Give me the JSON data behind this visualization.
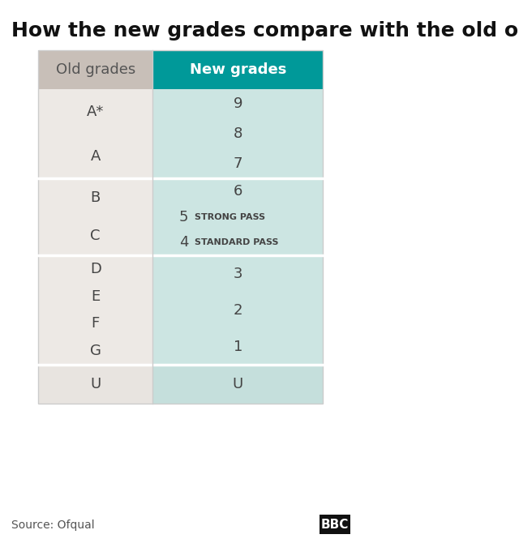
{
  "title": "How the new grades compare with the old ones",
  "title_fontsize": 18,
  "col1_header": "Old grades",
  "col2_header": "New grades",
  "header_bg_col1": "#c8bfb8",
  "header_bg_col2": "#009999",
  "header_text_col1": "#555555",
  "header_text_col2": "#ffffff",
  "row_bg_light": "#f0ece8",
  "row_bg_teal_light": "#c8e0dc",
  "row_bg_teal_lighter": "#d8ecea",
  "row_bg_white_col1": "#ede9e5",
  "dashed_line_color": "#999999",
  "source_text": "Source: Ofqual",
  "bbc_text": "BBC",
  "figure_bg": "#ffffff",
  "sections": [
    {
      "old_grades": [
        "A*",
        "A"
      ],
      "new_grades": [
        "9",
        "8",
        "7"
      ],
      "new_annotations": [
        "",
        "",
        ""
      ],
      "col1_bg": "#ede9e5",
      "col2_bg": "#cce5e2"
    },
    {
      "old_grades": [
        "B",
        "C"
      ],
      "new_grades": [
        "6",
        "5",
        "4"
      ],
      "new_annotations": [
        "",
        "STRONG PASS",
        "STANDARD PASS"
      ],
      "col1_bg": "#ede9e5",
      "col2_bg": "#cce5e2"
    },
    {
      "old_grades": [
        "D",
        "E",
        "F",
        "G"
      ],
      "new_grades": [
        "3",
        "2",
        "1"
      ],
      "new_annotations": [
        "",
        "",
        ""
      ],
      "col1_bg": "#ede9e5",
      "col2_bg": "#cce5e2",
      "dashed_top": true
    },
    {
      "old_grades": [
        "U"
      ],
      "new_grades": [
        "U"
      ],
      "new_annotations": [
        ""
      ],
      "col1_bg": "#e8e4e0",
      "col2_bg": "#c5dfdc"
    }
  ]
}
